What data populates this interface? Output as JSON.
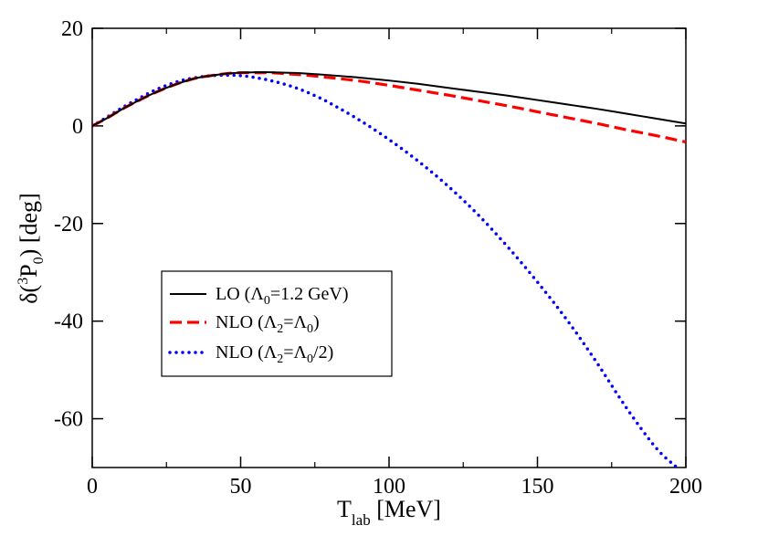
{
  "chart_data": {
    "type": "line",
    "title": "",
    "xlabel": "T_lab [MeV]",
    "xlabel_main": "T",
    "xlabel_sub": "lab",
    "xlabel_unit": " [MeV]",
    "ylabel": "δ(3P0) [deg]",
    "ylabel_parts": {
      "delta": "δ(",
      "sup": "3",
      "P": "P",
      "sub": "0",
      "close": ") [deg]"
    },
    "xlim": [
      0,
      200
    ],
    "ylim": [
      -70,
      20
    ],
    "xticks": [
      0,
      50,
      100,
      150,
      200
    ],
    "yticks": [
      20,
      0,
      -20,
      -40,
      -60
    ],
    "legend_position": "center-left",
    "series": [
      {
        "name": "LO (Λ0=1.2 GeV)",
        "legend": {
          "a": "LO (Λ",
          "a_sub": "0",
          "b": "=1.2 GeV)"
        },
        "color": "#000000",
        "style": "solid",
        "x": [
          0,
          5,
          10,
          15,
          20,
          25,
          30,
          35,
          40,
          45,
          50,
          55,
          60,
          65,
          70,
          80,
          90,
          100,
          110,
          120,
          130,
          140,
          150,
          160,
          170,
          180,
          190,
          200
        ],
        "y": [
          0,
          1.6,
          3.4,
          5.0,
          6.5,
          7.8,
          8.9,
          9.8,
          10.3,
          10.7,
          10.9,
          11.0,
          11.0,
          10.9,
          10.8,
          10.4,
          9.9,
          9.3,
          8.6,
          7.8,
          7.0,
          6.2,
          5.3,
          4.4,
          3.5,
          2.5,
          1.5,
          0.5
        ]
      },
      {
        "name": "NLO (Λ2=Λ0)",
        "legend": {
          "a": "NLO (Λ",
          "a_sub": "2",
          "b": "=Λ",
          "b_sub": "0",
          "c": ")"
        },
        "color": "#ff0000",
        "style": "dashed",
        "x": [
          0,
          5,
          10,
          15,
          20,
          25,
          30,
          35,
          40,
          45,
          50,
          55,
          60,
          65,
          70,
          80,
          90,
          100,
          110,
          120,
          130,
          140,
          150,
          160,
          170,
          180,
          190,
          200
        ],
        "y": [
          0,
          1.6,
          3.4,
          5.0,
          6.5,
          7.8,
          8.9,
          9.8,
          10.3,
          10.7,
          10.9,
          10.9,
          10.9,
          10.7,
          10.5,
          9.9,
          9.2,
          8.3,
          7.3,
          6.3,
          5.2,
          4.1,
          2.9,
          1.7,
          0.5,
          -0.8,
          -2.0,
          -3.3
        ]
      },
      {
        "name": "NLO (Λ2=Λ0/2)",
        "legend": {
          "a": "NLO (Λ",
          "a_sub": "2",
          "b": "=Λ",
          "b_sub": "0",
          "c": "/2)"
        },
        "color": "#0000ff",
        "style": "dotted",
        "x": [
          0,
          5,
          10,
          15,
          20,
          25,
          30,
          35,
          40,
          45,
          50,
          55,
          60,
          65,
          70,
          75,
          80,
          90,
          100,
          110,
          120,
          130,
          140,
          150,
          160,
          170,
          180,
          190,
          197
        ],
        "y": [
          0,
          1.8,
          3.7,
          5.4,
          7.0,
          8.3,
          9.3,
          9.9,
          10.3,
          10.4,
          10.3,
          9.9,
          9.3,
          8.5,
          7.5,
          6.2,
          4.7,
          1.2,
          -2.8,
          -7.3,
          -12.4,
          -18.2,
          -24.8,
          -32.0,
          -39.8,
          -48.5,
          -57.8,
          -66.0,
          -70
        ]
      }
    ]
  }
}
